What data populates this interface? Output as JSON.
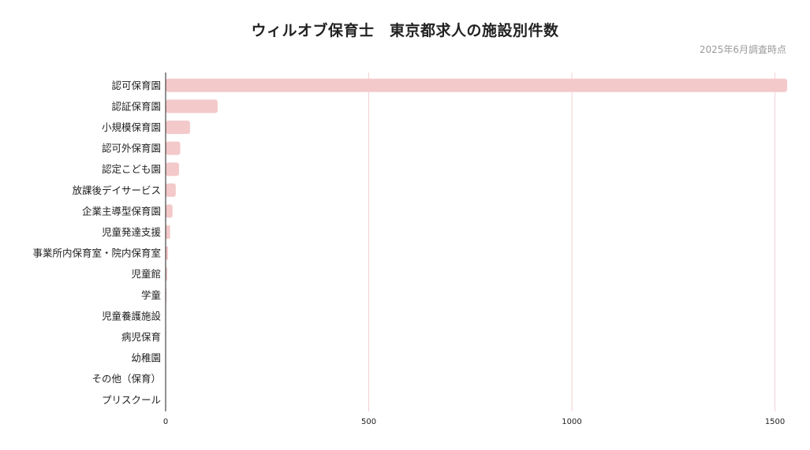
{
  "chart_data": {
    "type": "bar",
    "orientation": "horizontal",
    "title": "ウィルオブ保育士　東京都求人の施設別件数",
    "subtitle": "2025年6月調査時点",
    "categories": [
      "認可保育園",
      "認証保育園",
      "小規模保育園",
      "認可外保育園",
      "認定こども園",
      "放課後デイサービス",
      "企業主導型保育園",
      "児童発達支援",
      "事業所内保育室・院内保育室",
      "児童館",
      "学童",
      "児童養護施設",
      "病児保育",
      "幼稚園",
      "その他（保育）",
      "プリスクール"
    ],
    "values": [
      1530,
      128,
      60,
      36,
      33,
      25,
      17,
      11,
      6,
      4,
      2,
      1,
      1,
      1,
      0,
      0
    ],
    "xlim": [
      0,
      1530
    ],
    "xticks": [
      0,
      500,
      1000,
      1500
    ],
    "grid": true,
    "bar_color": "#f4c9ca",
    "grid_color": "#f2d2d4",
    "axis_color": "#222222"
  }
}
